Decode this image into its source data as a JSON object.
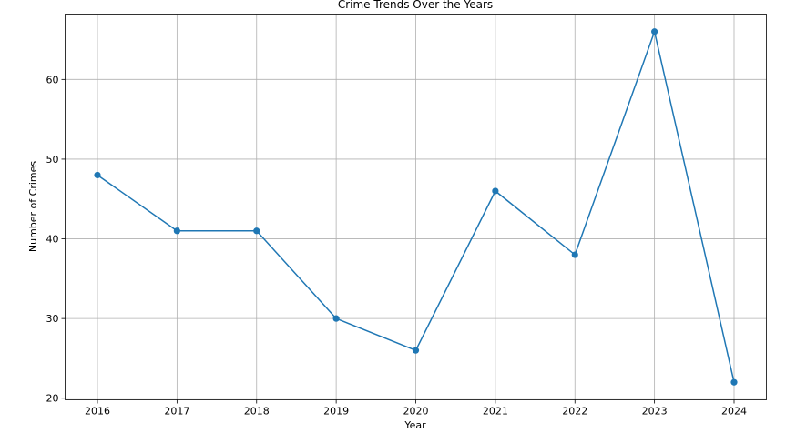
{
  "chart_data": {
    "type": "line",
    "title": "Crime Trends Over the Years",
    "xlabel": "Year",
    "ylabel": "Number of Crimes",
    "x": [
      "2016",
      "2017",
      "2018",
      "2019",
      "2020",
      "2021",
      "2022",
      "2023",
      "2024"
    ],
    "values": [
      48,
      41,
      41,
      30,
      26,
      46,
      38,
      66,
      22
    ],
    "yticks": [
      20,
      30,
      40,
      50,
      60
    ],
    "ylim": [
      19.8,
      68.2
    ],
    "grid": true,
    "legend": "none",
    "marker": "circle",
    "line_color": "#1f77b4"
  }
}
